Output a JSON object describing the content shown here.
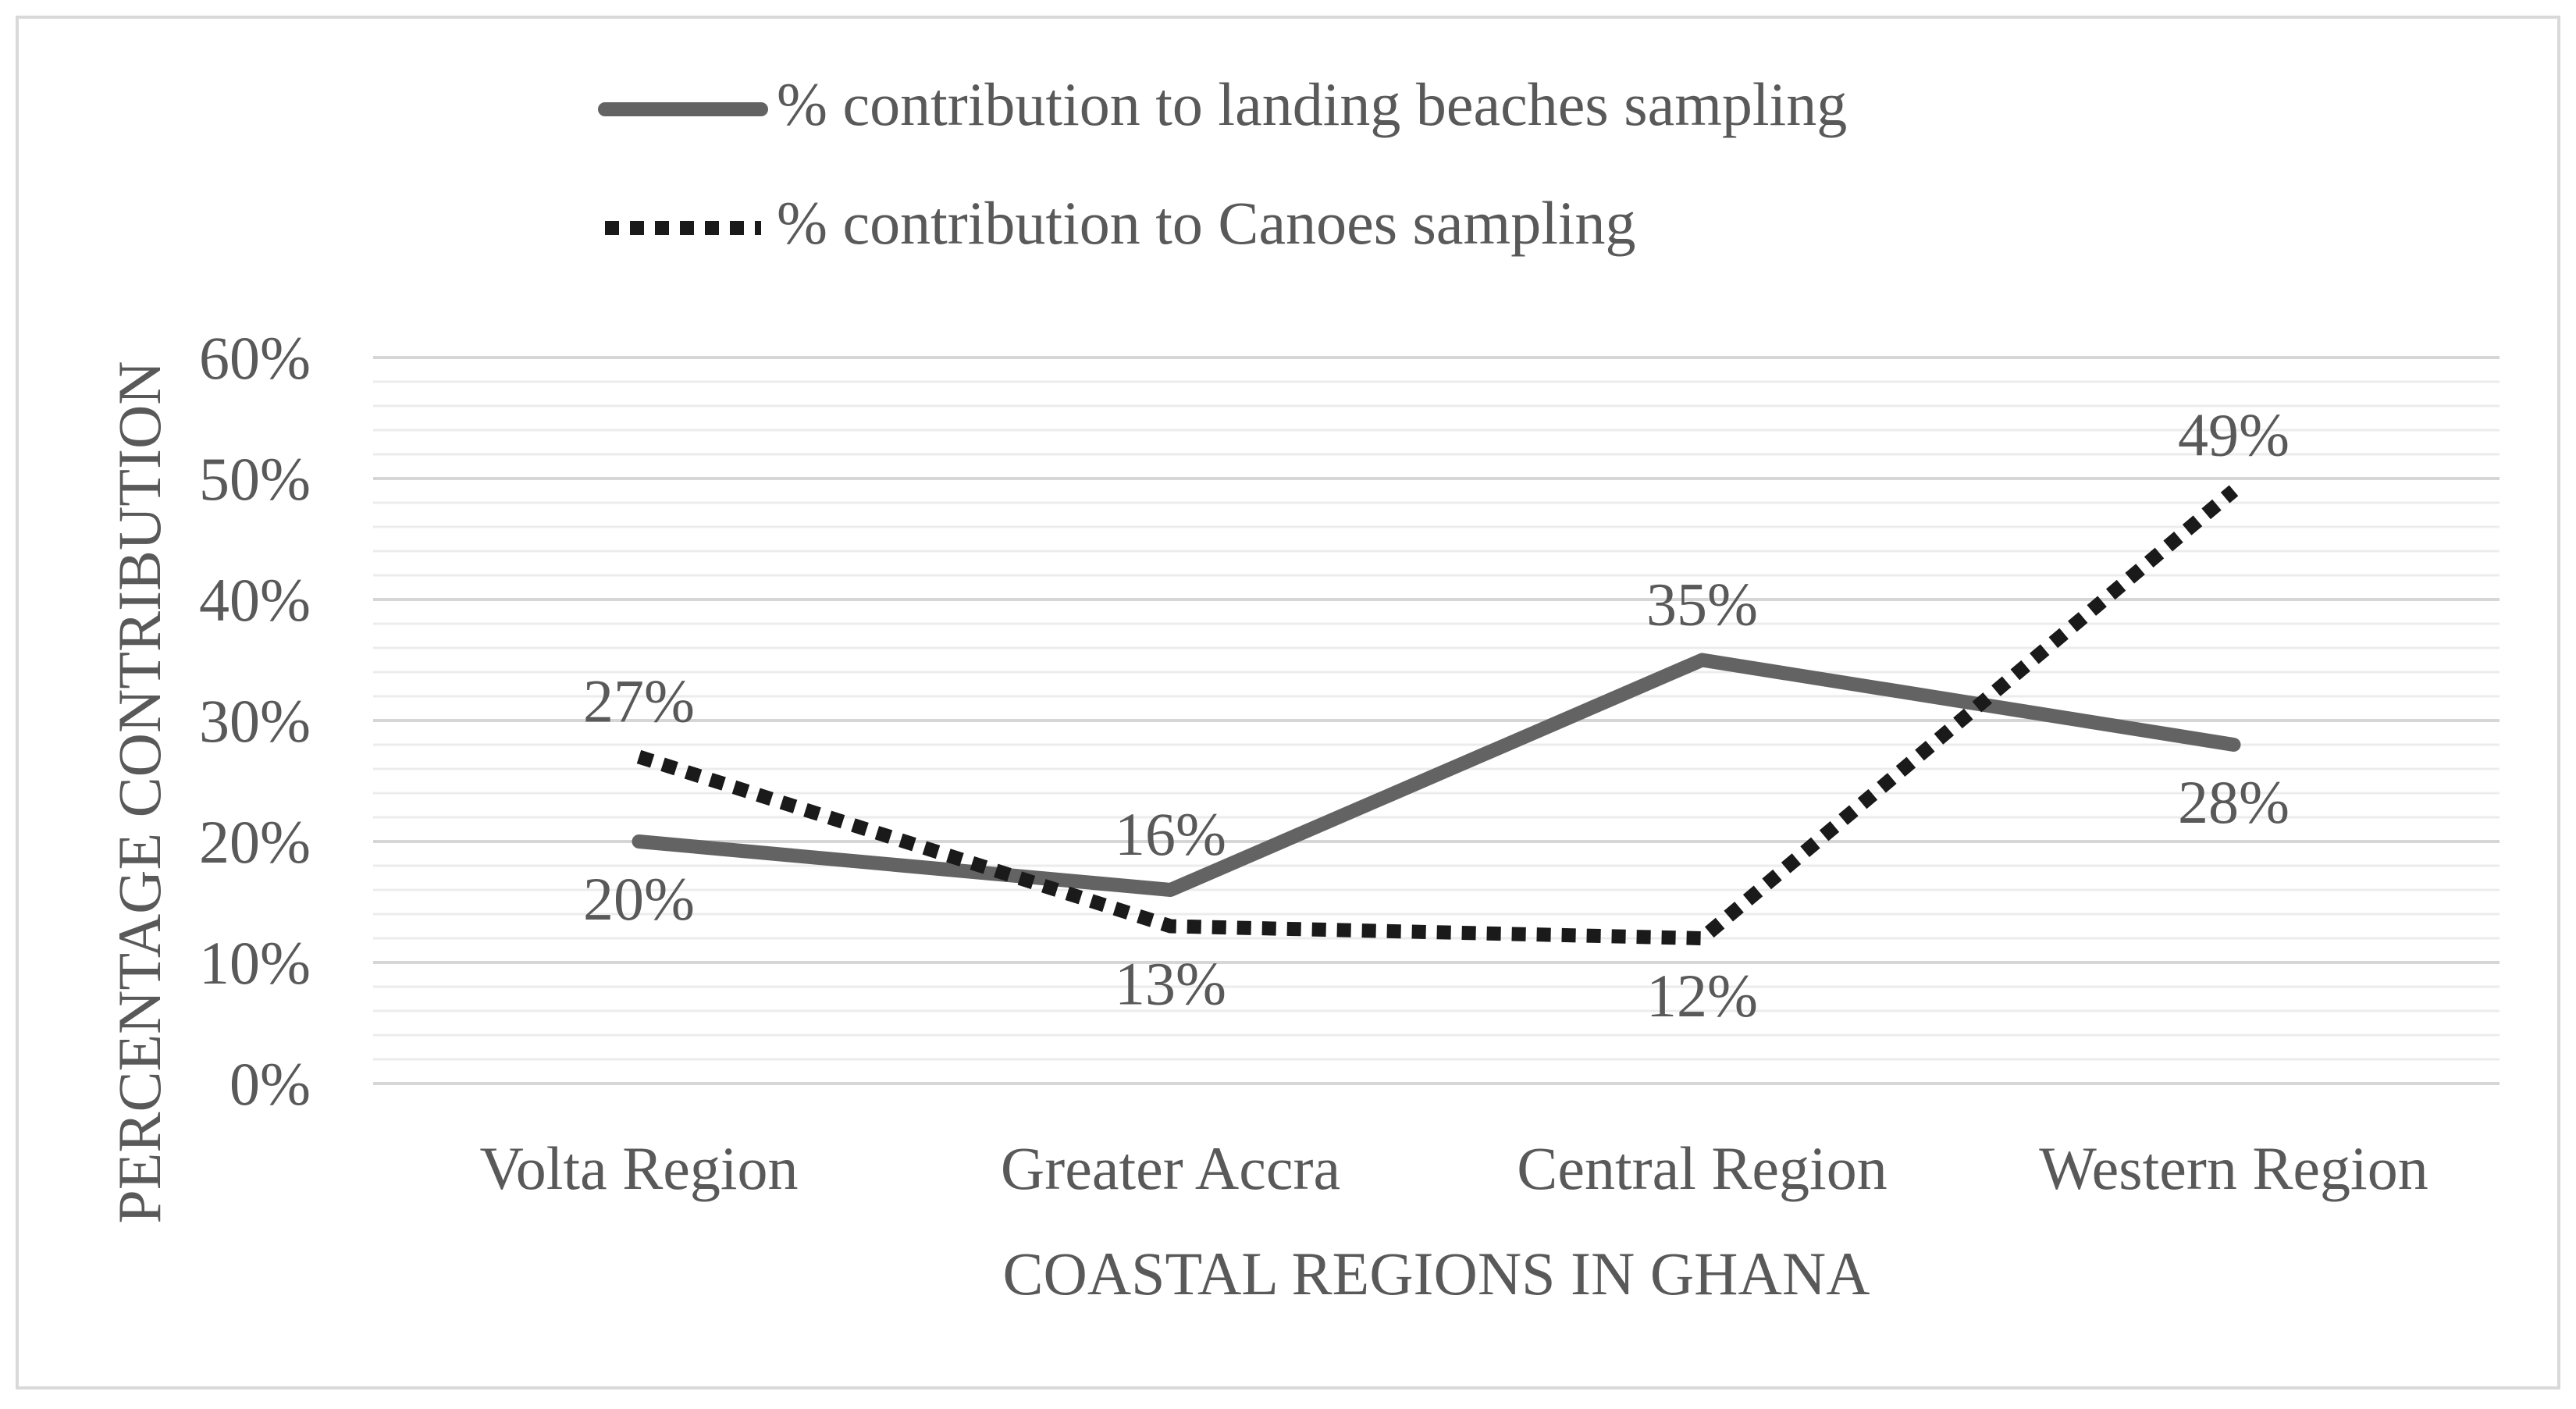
{
  "chart_data": {
    "type": "line",
    "title": "",
    "xlabel": "COASTAL REGIONS IN GHANA",
    "ylabel": "PERCENTAGE CONTRIBUTION",
    "categories": [
      "Volta Region",
      "Greater Accra",
      "Central Region",
      "Western Region"
    ],
    "ylim": [
      0,
      60
    ],
    "yticks": [
      0,
      10,
      20,
      30,
      40,
      50,
      60
    ],
    "ytick_labels": [
      "0%",
      "10%",
      "20%",
      "30%",
      "40%",
      "50%",
      "60%"
    ],
    "grid": true,
    "legend_position": "top",
    "series": [
      {
        "name": "% contribution to landing beaches sampling",
        "style": "solid",
        "color": "#636363",
        "values": [
          20,
          16,
          35,
          28
        ],
        "labels": [
          "20%",
          "16%",
          "35%",
          "28%"
        ],
        "label_positions": [
          "below",
          "above",
          "above",
          "below"
        ]
      },
      {
        "name": "% contribution to Canoes sampling",
        "style": "dotted",
        "color": "#1a1a1a",
        "values": [
          27,
          13,
          12,
          49
        ],
        "labels": [
          "27%",
          "13%",
          "12%",
          "49%"
        ],
        "label_positions": [
          "above",
          "below",
          "below",
          "above"
        ]
      }
    ]
  }
}
